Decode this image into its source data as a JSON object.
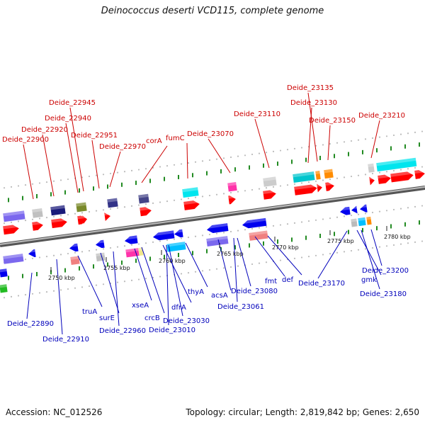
{
  "title": "Deinococcus deserti VCD115, complete genome",
  "footer": {
    "accession": "Accession: NC_012526",
    "topology": "Topology: circular; Length: 2,819,842 bp; Genes: 2,650"
  },
  "colors": {
    "forward_label": "#cc0000",
    "reverse_label": "#0000bb",
    "backbone": "#888888",
    "tick": "#118811",
    "forward_gene": "#ff0000",
    "reverse_gene": "#0000ee"
  },
  "ticks": [
    {
      "label": "2750 kbp"
    },
    {
      "label": "2755 kbp"
    },
    {
      "label": "2760 kbp"
    },
    {
      "label": "2765 kbp"
    },
    {
      "label": "2770 kbp"
    },
    {
      "label": "2775 kbp"
    },
    {
      "label": "2780 kbp"
    }
  ],
  "forward_labels": [
    {
      "text": "Deide_22900"
    },
    {
      "text": "Deide_22920"
    },
    {
      "text": "Deide_22940"
    },
    {
      "text": "Deide_22945"
    },
    {
      "text": "Deide_22951"
    },
    {
      "text": "Deide_22970"
    },
    {
      "text": "corA"
    },
    {
      "text": "fumC"
    },
    {
      "text": "Deide_23070"
    },
    {
      "text": "Deide_23110"
    },
    {
      "text": "Deide_23135"
    },
    {
      "text": "Deide_23130"
    },
    {
      "text": "Deide_23150"
    },
    {
      "text": "Deide_23210"
    }
  ],
  "reverse_labels": [
    {
      "text": "Deide_22890"
    },
    {
      "text": "Deide_22910"
    },
    {
      "text": "truA"
    },
    {
      "text": "surE"
    },
    {
      "text": "Deide_22960"
    },
    {
      "text": "xseA"
    },
    {
      "text": "crcB"
    },
    {
      "text": "dfrA"
    },
    {
      "text": "Deide_23010"
    },
    {
      "text": "Deide_23030"
    },
    {
      "text": "thyA"
    },
    {
      "text": "acsA"
    },
    {
      "text": "Deide_23061"
    },
    {
      "text": "Deide_23080"
    },
    {
      "text": "fmt"
    },
    {
      "text": "def"
    },
    {
      "text": "Deide_23170"
    },
    {
      "text": "gmk"
    },
    {
      "text": "Deide_23180"
    },
    {
      "text": "Deide_23200"
    }
  ]
}
